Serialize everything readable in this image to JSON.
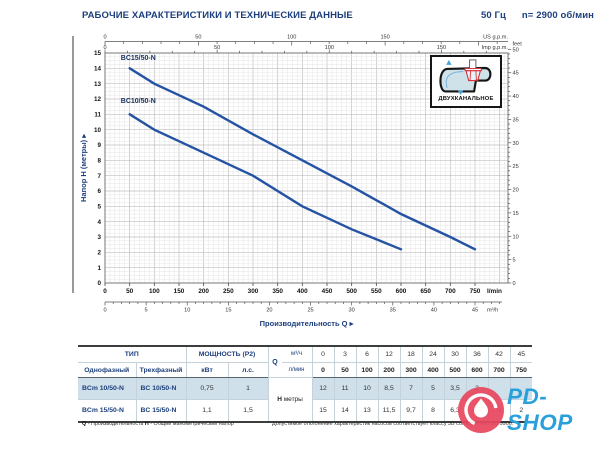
{
  "header": {
    "title": "РАБОЧИЕ ХАРАКТЕРИСТИКИ И ТЕХНИЧЕСКИЕ ДАННЫЕ",
    "frequency": "50 Гц",
    "speed": "n= 2900 об/мин"
  },
  "chart_data": {
    "type": "line",
    "x_title": "Производительность Q  ▸",
    "y_title": "Напор H (метры)  ▸",
    "curve_color": "#2553a4",
    "xlim_lmin": [
      0,
      815
    ],
    "ylim_m": [
      0,
      15
    ],
    "axes": {
      "lmin": {
        "label": "l/min",
        "ticks": [
          0,
          50,
          100,
          150,
          200,
          250,
          300,
          350,
          400,
          450,
          500,
          550,
          600,
          650,
          700,
          750
        ]
      },
      "m3h": {
        "label": "m³/h",
        "ticks": [
          0,
          5,
          10,
          15,
          20,
          25,
          30,
          35,
          40,
          45
        ]
      },
      "us_gpm": {
        "label": "US g.p.m.",
        "ticks": [
          0,
          50,
          100,
          150
        ]
      },
      "imp_gpm": {
        "label": "Imp g.p.m.",
        "ticks": [
          0,
          50,
          100,
          150
        ]
      },
      "head_m": {
        "ticks": [
          0,
          1,
          2,
          3,
          4,
          5,
          6,
          7,
          8,
          9,
          10,
          11,
          12,
          13,
          14,
          15
        ]
      },
      "feet": {
        "label": "feet",
        "ticks": [
          0,
          5,
          10,
          15,
          20,
          25,
          30,
          35,
          40,
          45,
          50
        ]
      }
    },
    "series": [
      {
        "name": "BC15/50-N",
        "label_at": [
          32,
          14.55
        ],
        "points": [
          [
            50,
            14
          ],
          [
            100,
            13
          ],
          [
            200,
            11.5
          ],
          [
            300,
            9.7
          ],
          [
            400,
            8
          ],
          [
            500,
            6.3
          ],
          [
            600,
            4.5
          ],
          [
            700,
            3
          ],
          [
            750,
            2.2
          ]
        ]
      },
      {
        "name": "BC10/50-N",
        "label_at": [
          32,
          11.75
        ],
        "points": [
          [
            50,
            11
          ],
          [
            100,
            10
          ],
          [
            200,
            8.5
          ],
          [
            300,
            7
          ],
          [
            400,
            5
          ],
          [
            500,
            3.5
          ],
          [
            600,
            2.2
          ]
        ]
      }
    ],
    "inset_label": "ДВУХКАНАЛЬНОЕ"
  },
  "table": {
    "tip_label": "ТИП",
    "power_label": "МОЩНОСТЬ (P2)",
    "single_label": "Однофазный",
    "three_label": "Трехфазный",
    "kw_label": "кВт",
    "hp_label": "л.с.",
    "q_label": "Q",
    "m3h_label": "м³/ч",
    "lmin_label": "л/мин",
    "h_label": "H",
    "metry_label": "метры",
    "q_m3h": [
      "0",
      "3",
      "6",
      "12",
      "18",
      "24",
      "30",
      "36",
      "42",
      "45"
    ],
    "q_lmin": [
      "0",
      "50",
      "100",
      "200",
      "300",
      "400",
      "500",
      "600",
      "700",
      "750"
    ],
    "rows": [
      {
        "single": "BCm 10/50-N",
        "three": "BC 10/50-N",
        "kw": "0,75",
        "hp": "1",
        "h": [
          "12",
          "11",
          "10",
          "8,5",
          "7",
          "5",
          "3,5",
          "2",
          "",
          ""
        ]
      },
      {
        "single": "BCm 15/50-N",
        "three": "BC 15/50-N",
        "kw": "1,1",
        "hp": "1,5",
        "h": [
          "15",
          "14",
          "13",
          "11,5",
          "9,7",
          "8",
          "6,3",
          "4,5",
          "3",
          "2"
        ]
      }
    ]
  },
  "footnotes": {
    "q_sym": "Q",
    "q_text": " - Производительность    ",
    "h_sym": "H",
    "h_text": " - Общий манометрический напор",
    "right": "Допустимое отклонение характеристик насосов соответствует классу 3В согласно EN ISO 9906."
  },
  "watermark": {
    "letter": "P",
    "text": "PD-SHOP",
    "circle_color": "#e8485f",
    "text_color": "#29a0db"
  }
}
